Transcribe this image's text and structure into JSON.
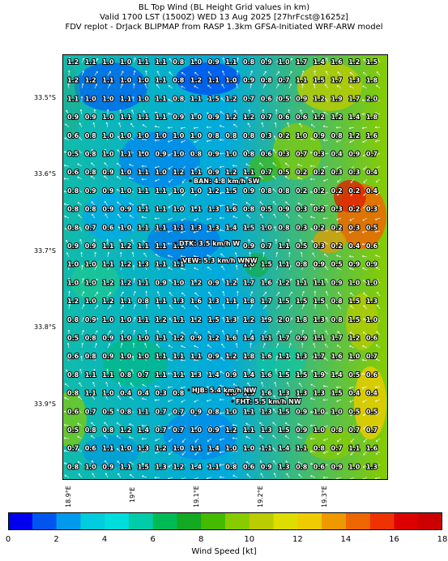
{
  "title": {
    "line1": "BL Top Wind (BL Height Grid values in km)",
    "line2": "Valid 1700 LST (1500Z) WED 13 Aug 2025 [27hrFcst@1625z]",
    "line3": "FDV replot - DrJack BLIPMAP from RASP 1.3km GFSA-Initiated WRF-ARW model"
  },
  "latitude_labels": [
    "33.5°S",
    "33.6°S",
    "33.7°S",
    "33.8°S",
    "33.9°S"
  ],
  "longitude_labels": [
    "18.9°E",
    "19°E",
    "19.1°E",
    "19.2°E",
    "19.3°E"
  ],
  "colorbar": {
    "label": "Wind Speed [kt]",
    "ticks": [
      "0",
      "2",
      "4",
      "6",
      "8",
      "10",
      "12",
      "14",
      "16",
      "18"
    ],
    "colors": [
      "#0000ee",
      "#0055ee",
      "#0099ee",
      "#00ccdd",
      "#00dddd",
      "#00ccaa",
      "#00bb55",
      "#11aa22",
      "#44bb00",
      "#88cc00",
      "#bbcc00",
      "#dddd00",
      "#eecc00",
      "#ee9900",
      "#ee6600",
      "#ee3300",
      "#dd0000",
      "#cc0000"
    ]
  },
  "stations": [
    {
      "label": "BAN: 4.8 km/h SW"
    },
    {
      "label": "DTK: 3.5 km/h W"
    },
    {
      "label": "VEW: 5.3 km/h WNW"
    },
    {
      "label": "HJB: 5.4 km/h NW"
    },
    {
      "label": "FHT: 5.5 km/h NW"
    }
  ],
  "bl_height_grid": [
    [
      "1.2",
      "1.1",
      "1.0",
      "1.0",
      "1.1",
      "1.1",
      "0.8",
      "1.0",
      "0.9",
      "1.1",
      "0.8",
      "0.9",
      "1.0",
      "1.7",
      "1.4",
      "1.6",
      "1.2",
      "1.5"
    ],
    [
      "1.2",
      "1.2",
      "1.1",
      "1.0",
      "1.0",
      "1.1",
      "0.8",
      "1.2",
      "1.1",
      "1.0",
      "0.9",
      "0.8",
      "0.7",
      "1.1",
      "1.5",
      "1.7",
      "1.3",
      "1.8"
    ],
    [
      "1.1",
      "1.0",
      "1.0",
      "1.1",
      "1.0",
      "1.1",
      "0.8",
      "1.1",
      "1.5",
      "1.2",
      "0.7",
      "0.6",
      "0.5",
      "0.9",
      "1.2",
      "1.9",
      "1.7",
      "2.0"
    ],
    [
      "0.9",
      "0.9",
      "1.0",
      "1.1",
      "1.1",
      "1.1",
      "0.9",
      "1.0",
      "0.9",
      "1.2",
      "1.2",
      "0.7",
      "0.6",
      "0.6",
      "1.2",
      "1.2",
      "1.4",
      "1.8"
    ],
    [
      "0.6",
      "0.8",
      "1.0",
      "1.0",
      "1.0",
      "1.0",
      "1.0",
      "1.0",
      "0.8",
      "0.8",
      "0.8",
      "0.3",
      "0.2",
      "1.0",
      "0.9",
      "0.8",
      "1.2",
      "1.6"
    ],
    [
      "0.5",
      "0.8",
      "1.0",
      "1.1",
      "1.0",
      "0.9",
      "1.0",
      "0.8",
      "0.9",
      "1.0",
      "0.8",
      "0.6",
      "0.3",
      "0.7",
      "0.3",
      "0.4",
      "0.9",
      "0.7"
    ],
    [
      "0.6",
      "0.8",
      "0.9",
      "1.0",
      "1.1",
      "1.0",
      "1.2",
      "1.1",
      "0.9",
      "1.2",
      "1.1",
      "0.7",
      "0.5",
      "0.2",
      "0.2",
      "0.3",
      "0.3",
      "0.4"
    ],
    [
      "0.8",
      "0.9",
      "0.9",
      "1.0",
      "1.1",
      "1.1",
      "1.0",
      "1.0",
      "1.2",
      "1.5",
      "0.9",
      "0.8",
      "0.8",
      "0.2",
      "0.2",
      "0.2",
      "0.2",
      "0.4"
    ],
    [
      "0.8",
      "0.8",
      "0.9",
      "0.9",
      "1.1",
      "1.1",
      "1.0",
      "1.1",
      "1.3",
      "1.6",
      "0.8",
      "0.5",
      "0.9",
      "0.3",
      "0.2",
      "0.3",
      "0.2",
      "0.3"
    ],
    [
      "0.8",
      "0.7",
      "0.6",
      "1.0",
      "1.1",
      "1.1",
      "1.1",
      "1.3",
      "1.3",
      "1.4",
      "1.5",
      "1.0",
      "0.8",
      "0.3",
      "0.2",
      "0.2",
      "0.3",
      "0.5"
    ],
    [
      "0.9",
      "0.9",
      "1.1",
      "1.2",
      "1.1",
      "1.1",
      "1.1",
      "",
      "",
      "",
      "0.9",
      "0.7",
      "1.1",
      "0.5",
      "0.3",
      "0.2",
      "0.4",
      "0.6"
    ],
    [
      "1.0",
      "1.0",
      "1.1",
      "1.2",
      "1.3",
      "1.1",
      "1.1",
      "",
      "",
      "",
      "1.0",
      "1.5",
      "1.1",
      "0.8",
      "0.9",
      "0.5",
      "0.9",
      "0.9"
    ],
    [
      "1.0",
      "1.0",
      "1.2",
      "1.2",
      "1.1",
      "0.9",
      "1.0",
      "1.2",
      "0.9",
      "1.2",
      "1.7",
      "1.6",
      "1.2",
      "1.1",
      "1.1",
      "0.9",
      "1.0",
      "1.0"
    ],
    [
      "1.2",
      "1.0",
      "1.2",
      "1.1",
      "0.8",
      "1.1",
      "1.3",
      "1.6",
      "1.3",
      "1.1",
      "1.8",
      "1.7",
      "1.5",
      "1.5",
      "1.5",
      "0.8",
      "1.5",
      "1.3"
    ],
    [
      "0.8",
      "0.9",
      "1.0",
      "1.0",
      "1.1",
      "1.2",
      "1.1",
      "1.2",
      "1.5",
      "1.3",
      "1.2",
      "1.9",
      "2.0",
      "1.8",
      "1.3",
      "0.8",
      "1.5",
      "1.0"
    ],
    [
      "0.5",
      "0.8",
      "0.9",
      "1.0",
      "1.0",
      "1.1",
      "1.2",
      "0.9",
      "1.2",
      "1.6",
      "1.4",
      "1.1",
      "1.7",
      "0.9",
      "1.1",
      "1.7",
      "1.2",
      "0.6"
    ],
    [
      "0.6",
      "0.8",
      "0.9",
      "1.0",
      "1.0",
      "1.1",
      "1.1",
      "1.1",
      "0.9",
      "1.2",
      "1.8",
      "1.6",
      "1.1",
      "1.3",
      "1.7",
      "1.6",
      "1.0",
      "0.7"
    ],
    [
      "0.8",
      "1.1",
      "1.1",
      "0.8",
      "0.7",
      "1.1",
      "1.1",
      "1.3",
      "1.4",
      "0.9",
      "1.4",
      "1.6",
      "1.5",
      "1.5",
      "1.9",
      "1.4",
      "0.5",
      "0.6"
    ],
    [
      "0.8",
      "1.1",
      "1.0",
      "0.4",
      "0.4",
      "0.3",
      "0.8",
      "",
      "",
      "1.0",
      "1.5",
      "1.6",
      "1.3",
      "1.3",
      "1.3",
      "1.5",
      "0.4",
      "0.4"
    ],
    [
      "0.6",
      "0.7",
      "0.5",
      "0.8",
      "1.1",
      "0.7",
      "0.7",
      "0.9",
      "0.8",
      "1.0",
      "1.1",
      "1.3",
      "1.5",
      "0.9",
      "1.0",
      "1.0",
      "0.5",
      "0.5"
    ],
    [
      "0.5",
      "0.8",
      "0.8",
      "1.2",
      "1.4",
      "0.7",
      "0.7",
      "1.0",
      "0.9",
      "1.2",
      "1.1",
      "1.3",
      "1.5",
      "0.9",
      "1.0",
      "0.8",
      "0.7",
      "0.7"
    ],
    [
      "0.7",
      "0.6",
      "1.1",
      "1.0",
      "1.3",
      "1.2",
      "1.0",
      "1.1",
      "1.4",
      "1.0",
      "1.0",
      "1.1",
      "1.4",
      "1.1",
      "0.8",
      "0.7",
      "1.1",
      "1.6"
    ],
    [
      "0.8",
      "1.0",
      "0.9",
      "1.1",
      "1.5",
      "1.3",
      "1.2",
      "1.4",
      "1.1",
      "0.8",
      "0.6",
      "0.9",
      "1.3",
      "0.8",
      "0.6",
      "0.9",
      "1.0",
      "1.3"
    ]
  ]
}
